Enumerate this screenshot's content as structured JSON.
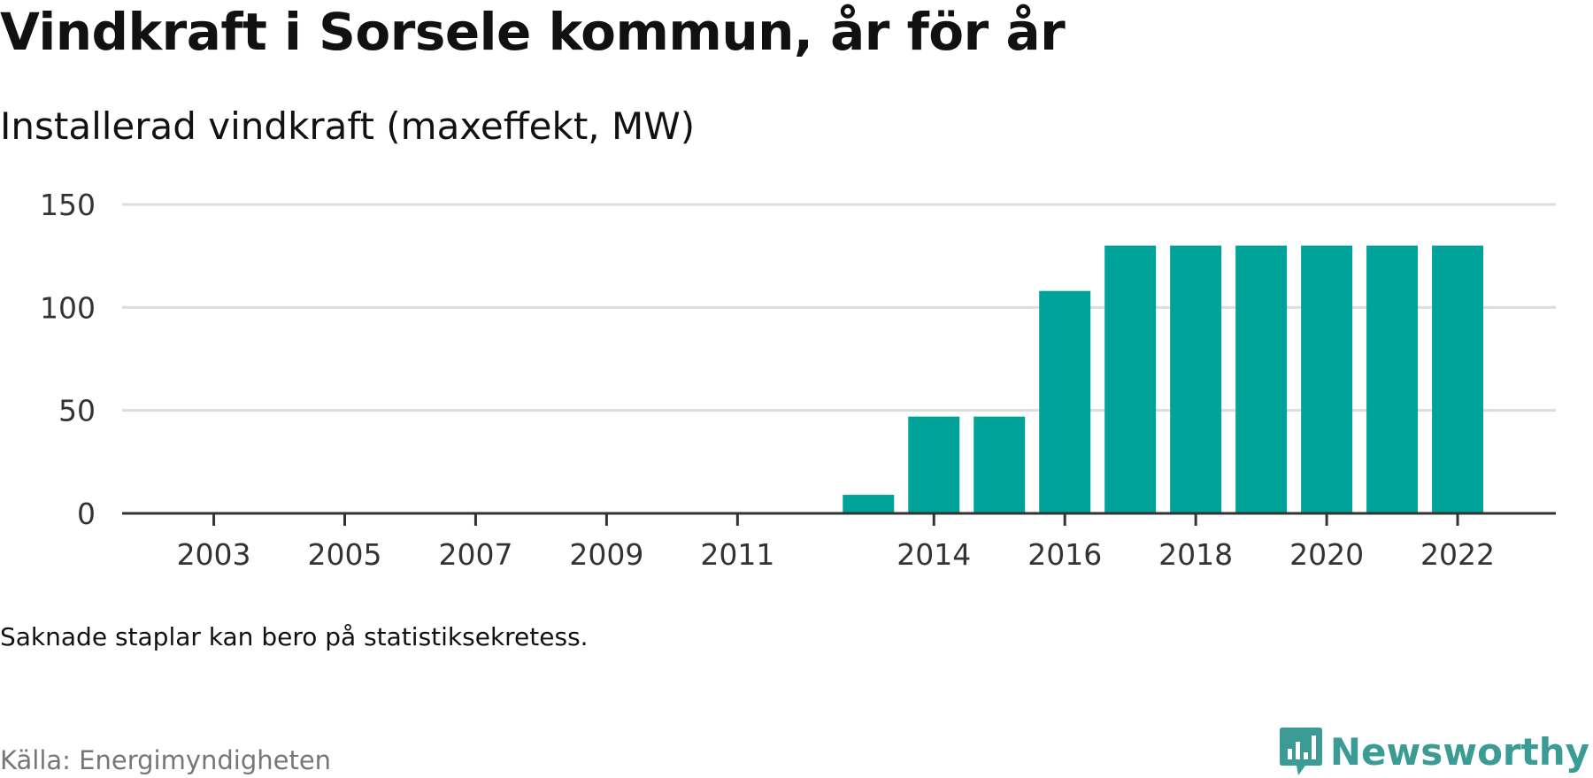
{
  "title": "Vindkraft i Sorsele kommun, år för år",
  "subtitle": "Installerad vindkraft (maxeffekt, MW)",
  "note": "Saknade staplar kan bero på statistiksekretess.",
  "source": "Källa: Energimyndigheten",
  "brand": {
    "name": "Newsworthy",
    "color": "#3a9c95",
    "icon": "newsworthy-logo-icon"
  },
  "colors": {
    "bar": "#00a39a",
    "grid": "#dddddd",
    "axis": "#333333",
    "text": "#333333"
  },
  "chart_data": {
    "type": "bar",
    "x": [
      2003,
      2004,
      2005,
      2006,
      2007,
      2008,
      2009,
      2010,
      2011,
      2012,
      2013,
      2014,
      2015,
      2016,
      2017,
      2018,
      2019,
      2020,
      2021,
      2022
    ],
    "values": [
      0,
      0,
      0,
      0,
      0,
      0,
      0,
      0,
      0,
      null,
      9,
      47,
      47,
      108,
      130,
      130,
      130,
      130,
      130,
      130
    ],
    "xticks": [
      2003,
      2005,
      2007,
      2009,
      2011,
      2014,
      2016,
      2018,
      2020,
      2022
    ],
    "yticks": [
      0,
      50,
      100,
      150
    ],
    "ylim": [
      0,
      150
    ],
    "xlim": [
      2001.6,
      2023.5
    ],
    "grid": true,
    "legend": "none"
  }
}
